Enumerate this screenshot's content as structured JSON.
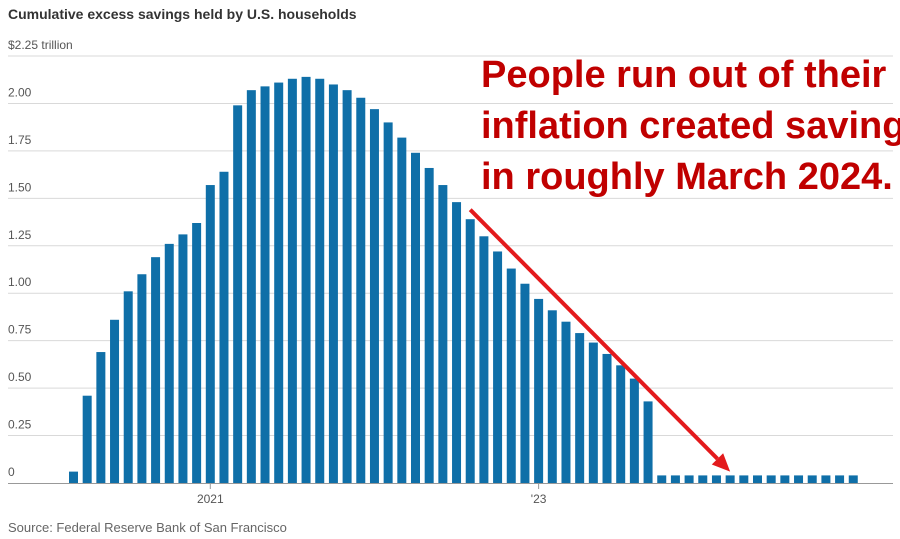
{
  "title": "Cumulative excess savings held by U.S. households",
  "source": "Source: Federal Reserve Bank of San Francisco",
  "annotation": {
    "lines": [
      "People run out of their",
      "inflation created savings",
      "in roughly March 2024."
    ],
    "color": "#c00000"
  },
  "colors": {
    "bars": "#0f6fa8",
    "gridlines": "#d9d9d9",
    "arrow": "#e31a1c",
    "baseline": "#999999"
  },
  "chart_data": {
    "type": "bar",
    "title": "Cumulative excess savings held by U.S. households",
    "ylim": [
      0,
      2.25
    ],
    "ytick_labels": [
      "0",
      "0.25",
      "0.50",
      "0.75",
      "1.00",
      "1.25",
      "1.50",
      "1.75",
      "2.00",
      "$2.25 trillion"
    ],
    "ytick_values": [
      0,
      0.25,
      0.5,
      0.75,
      1.0,
      1.25,
      1.5,
      1.75,
      2.0,
      2.25
    ],
    "xtick_labels": [
      {
        "label": "2021",
        "month_index": 10
      },
      {
        "label": "'23",
        "month_index": 34
      }
    ],
    "grid": true,
    "months": [
      "2020-03",
      "2020-04",
      "2020-05",
      "2020-06",
      "2020-07",
      "2020-08",
      "2020-09",
      "2020-10",
      "2020-11",
      "2020-12",
      "2021-01",
      "2021-02",
      "2021-03",
      "2021-04",
      "2021-05",
      "2021-06",
      "2021-07",
      "2021-08",
      "2021-09",
      "2021-10",
      "2021-11",
      "2021-12",
      "2022-01",
      "2022-02",
      "2022-03",
      "2022-04",
      "2022-05",
      "2022-06",
      "2022-07",
      "2022-08",
      "2022-09",
      "2022-10",
      "2022-11",
      "2022-12",
      "2023-01",
      "2023-02",
      "2023-03",
      "2023-04",
      "2023-05",
      "2023-06",
      "2023-07",
      "2023-08",
      "2023-09",
      "2023-10",
      "2023-11",
      "2023-12",
      "2024-01",
      "2024-02",
      "2024-03",
      "2024-04",
      "2024-05",
      "2024-06",
      "2024-07",
      "2024-08",
      "2024-09",
      "2024-10",
      "2024-11",
      "2024-12"
    ],
    "values": [
      0.06,
      0.46,
      0.69,
      0.86,
      1.01,
      1.1,
      1.19,
      1.26,
      1.31,
      1.37,
      1.57,
      1.64,
      1.99,
      2.07,
      2.09,
      2.11,
      2.13,
      2.14,
      2.13,
      2.1,
      2.07,
      2.03,
      1.97,
      1.9,
      1.82,
      1.74,
      1.66,
      1.57,
      1.48,
      1.39,
      1.3,
      1.22,
      1.13,
      1.05,
      0.97,
      0.91,
      0.85,
      0.79,
      0.74,
      0.68,
      0.62,
      0.55,
      0.43,
      0.04,
      0.04,
      0.04,
      0.04,
      0.04,
      0.04,
      0.04,
      0.04,
      0.04,
      0.04,
      0.04,
      0.04,
      0.04,
      0.04,
      0.04
    ],
    "trend_arrow": {
      "from": {
        "month_index": 29,
        "value": 1.44
      },
      "to": {
        "month_index": 48,
        "value": 0.06
      }
    }
  }
}
